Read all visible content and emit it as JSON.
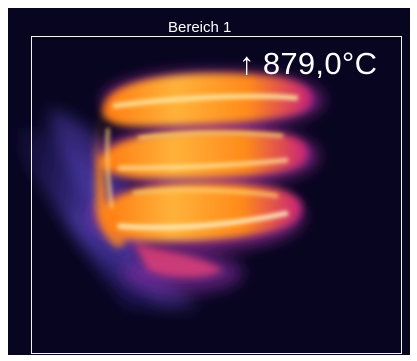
{
  "region": {
    "label": "Bereich 1"
  },
  "readout": {
    "arrow_icon": "arrow-up-icon",
    "arrow_glyph": "↑",
    "max_temperature": "879,0°C"
  },
  "colors": {
    "background": "#07051f",
    "frame": "#ffffff",
    "roi_border": "#f4f4f4",
    "palette_cool": "#3b2a8f",
    "palette_mid": "#c0206f",
    "palette_warm": "#ff6a00",
    "palette_hot": "#ffe08a"
  }
}
